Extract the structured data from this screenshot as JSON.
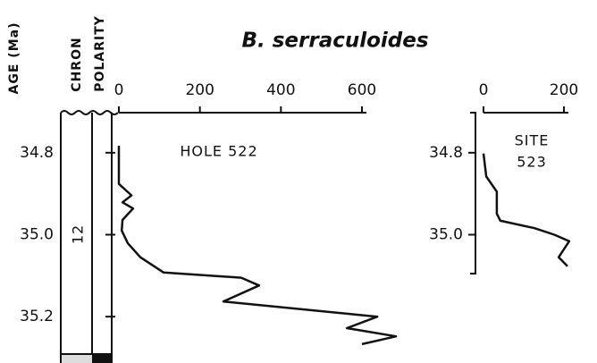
{
  "title": "B. serraculoides",
  "age_label": "AGE (Ma)",
  "chron_label": "CHRON",
  "polarity_label": "POLARITY",
  "chron": "12",
  "chart_data": [
    {
      "type": "line",
      "label_lines": [
        "HOLE 522"
      ],
      "color": "#111111",
      "xlim": [
        0,
        600
      ],
      "xticks": [
        0,
        200,
        400,
        600
      ],
      "ylim": [
        34.7,
        35.3
      ],
      "y_inverted": true,
      "yticks": [
        34.8,
        {
          "value": 35,
          "label": "35.0"
        },
        35.2
      ],
      "x": [
        0,
        0,
        31,
        9,
        35,
        9,
        7,
        22,
        53,
        110,
        302,
        346,
        258,
        638,
        563,
        684,
        600
      ],
      "y": [
        34.783,
        34.876,
        34.904,
        34.921,
        34.936,
        34.964,
        34.99,
        35.021,
        35.055,
        35.092,
        35.105,
        35.124,
        35.163,
        35.2,
        35.228,
        35.248,
        35.267
      ]
    },
    {
      "type": "line",
      "label_lines": [
        "SITE",
        "523"
      ],
      "color": "#111111",
      "xlim": [
        0,
        200
      ],
      "xticks": [
        0,
        200
      ],
      "ylim": [
        34.7,
        35.3
      ],
      "y_inverted": true,
      "yticks": [
        34.8,
        {
          "value": 35,
          "label": "35.0"
        }
      ],
      "x": [
        0,
        7,
        33,
        33,
        42,
        127,
        176,
        213,
        187,
        209
      ],
      "y": [
        34.802,
        34.858,
        34.895,
        34.949,
        34.966,
        34.984,
        35.0,
        35.016,
        35.055,
        35.077
      ]
    }
  ]
}
